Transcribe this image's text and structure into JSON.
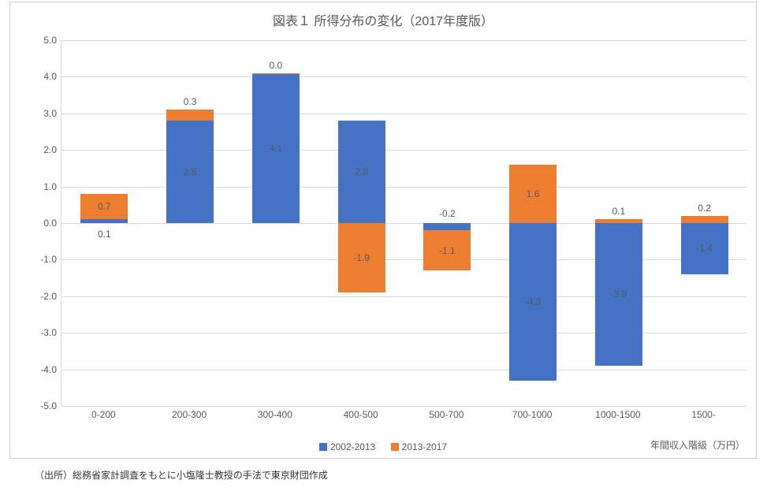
{
  "chart": {
    "title": "図表１ 所得分布の変化（2017年度版）",
    "type": "bar-stacked-diverging",
    "title_fontsize": 16,
    "title_color": "#595959",
    "background_color": "#ffffff",
    "border_color": "#d0d0d0",
    "grid_color": "#d9d9d9",
    "label_color": "#595959",
    "label_fontsize": 12,
    "ylim": [
      -5.0,
      5.0
    ],
    "ytick_step": 1.0,
    "y_ticks": [
      "-5.0",
      "-4.0",
      "-3.0",
      "-2.0",
      "-1.0",
      "0.0",
      "1.0",
      "2.0",
      "3.0",
      "4.0",
      "5.0"
    ],
    "categories": [
      "0-200",
      "200-300",
      "300-400",
      "400-500",
      "500-700",
      "700-1000",
      "1000-1500",
      "1500-"
    ],
    "series": [
      {
        "name": "2002-2013",
        "color": "#4472c4",
        "values": [
          0.1,
          2.8,
          4.1,
          2.8,
          -0.2,
          -4.3,
          -3.9,
          -1.4
        ]
      },
      {
        "name": "2013-2017",
        "color": "#ed7d31",
        "values": [
          0.7,
          0.3,
          0.0,
          -1.9,
          -1.1,
          1.6,
          0.1,
          0.2
        ]
      }
    ],
    "data_labels": {
      "s0": [
        "0.1",
        "2.8",
        "4.1",
        "2.8",
        "-0.2",
        "-4.3",
        "-3.9",
        "-1.4"
      ],
      "s1": [
        "0.7",
        "0.3",
        "0.0",
        "-1.9",
        "-1.1",
        "1.6",
        "0.1",
        "0.2"
      ]
    },
    "bar_width_ratio": 0.55,
    "x_axis_title": "年間収入階級（万円）"
  },
  "source_note": "（出所）総務省家計調査をもとに小塩隆士教授の手法で東京財団作成"
}
